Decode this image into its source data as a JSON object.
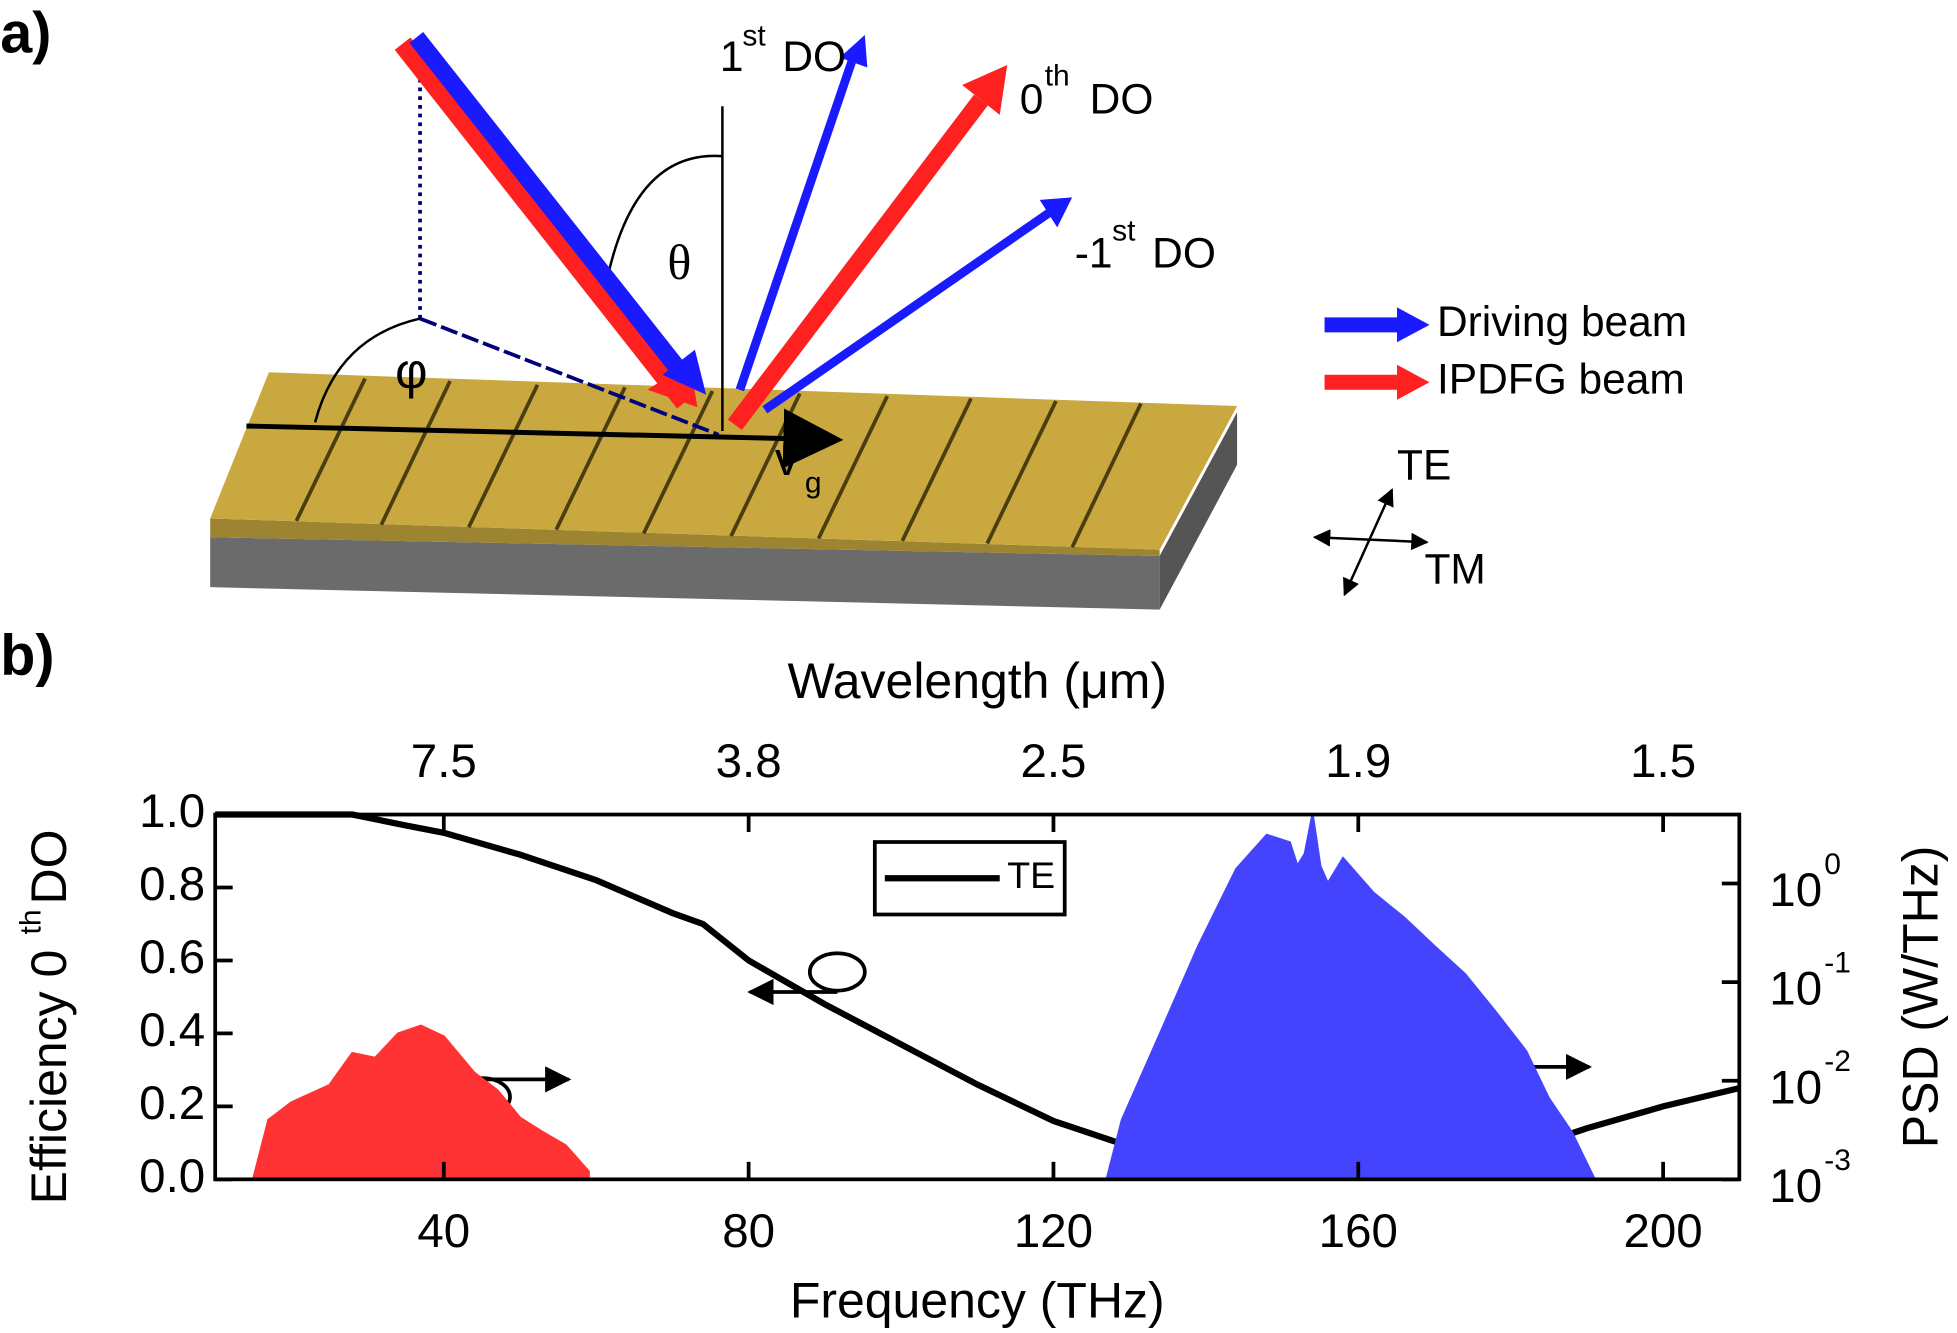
{
  "diagram": {
    "panel_label": "a)",
    "first_order": {
      "base": "1",
      "sup": "st",
      "tail": "DO"
    },
    "zeroth_order": {
      "base": "0",
      "sup": "th",
      "tail": "DO"
    },
    "minus_first_order": {
      "base": "-1",
      "sup": "st",
      "tail": "DO"
    },
    "theta": "θ",
    "phi": "φ",
    "group_velocity": {
      "base": "v",
      "sub": "g"
    },
    "legend": [
      "Driving beam",
      "IPDFG beam"
    ],
    "polarization": [
      "TE",
      "TM"
    ]
  },
  "chart_data": {
    "type": "line",
    "panel_label": "b)",
    "xlabel": "Frequency (THz)",
    "x2label": "Wavelength (μm)",
    "ylabel": {
      "main": "Efficiency 0",
      "sup": "th",
      "tail": " DO"
    },
    "y2label": "PSD (W/THz)",
    "xlim": [
      10,
      210
    ],
    "xticks": [
      40,
      80,
      120,
      160,
      200
    ],
    "x2ticks": [
      {
        "value": 40,
        "label": "7.5"
      },
      {
        "value": 80,
        "label": "3.8"
      },
      {
        "value": 120,
        "label": "2.5"
      },
      {
        "value": 160,
        "label": "1.9"
      },
      {
        "value": 200,
        "label": "1.5"
      }
    ],
    "ylim": [
      0,
      1
    ],
    "yticks": [
      {
        "value": 0,
        "label": "0.0"
      },
      0.2,
      0.4,
      0.6,
      0.8,
      {
        "value": 1,
        "label": "1.0"
      }
    ],
    "y2lim": [
      0.001,
      5
    ],
    "y2scale": "log",
    "y2ticks": [
      {
        "value": 0.001,
        "label": "10",
        "exponent": "-3"
      },
      {
        "value": 0.01,
        "label": "10",
        "exponent": "-2"
      },
      {
        "value": 0.1,
        "label": "10",
        "exponent": "-1"
      },
      {
        "value": 1,
        "label": "10",
        "exponent": "0"
      }
    ],
    "legend": "upper center",
    "series": [
      {
        "name": "TE",
        "type": "line",
        "color": "#000000",
        "x": [
          10,
          20,
          28,
          35,
          40,
          50,
          60,
          70,
          74,
          80,
          90,
          100,
          110,
          120,
          130,
          140,
          150,
          160,
          170,
          180,
          190,
          200,
          210
        ],
        "values": [
          1.0,
          1.0,
          1.0,
          0.97,
          0.95,
          0.89,
          0.82,
          0.73,
          0.7,
          0.6,
          0.48,
          0.37,
          0.26,
          0.16,
          0.09,
          0.04,
          0.01,
          0.005,
          0.02,
          0.07,
          0.14,
          0.2,
          0.25
        ]
      },
      {
        "type": "area",
        "axis": "y2",
        "color": "#ff3333",
        "x": [
          15,
          17,
          20,
          25,
          28,
          31,
          34,
          37,
          40,
          44,
          47,
          50,
          53,
          56,
          59
        ],
        "values": [
          0.001,
          0.004,
          0.006,
          0.009,
          0.019,
          0.017,
          0.03,
          0.036,
          0.028,
          0.012,
          0.008,
          0.0042,
          0.003,
          0.0022,
          0.0012
        ]
      },
      {
        "type": "area",
        "axis": "y2",
        "color": "#4444ff",
        "x": [
          127,
          129,
          134,
          139,
          144,
          148,
          151,
          152,
          153,
          154,
          155,
          156,
          158,
          162,
          166,
          170,
          174,
          178,
          182,
          185,
          188,
          191
        ],
        "values": [
          0.001,
          0.004,
          0.03,
          0.23,
          1.4,
          3.1,
          2.6,
          1.5,
          2.0,
          5.0,
          1.5,
          1.0,
          1.8,
          0.8,
          0.45,
          0.23,
          0.12,
          0.05,
          0.02,
          0.0066,
          0.003,
          0.001
        ]
      }
    ]
  }
}
